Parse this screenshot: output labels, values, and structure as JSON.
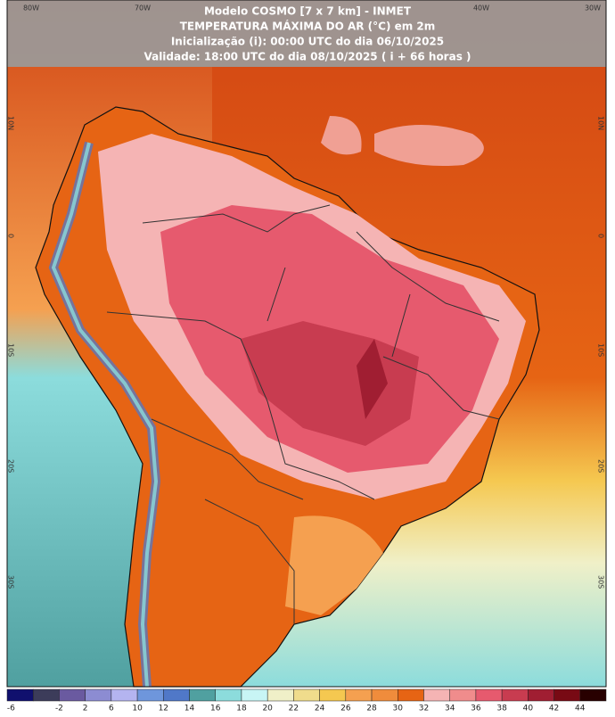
{
  "header": {
    "lines": [
      "Modelo COSMO [7 x 7 km] - INMET",
      "TEMPERATURA MÁXIMA DO AR (°C) em 2m",
      "Inicialização (i): 00:00 UTC do dia 06/10/2025",
      "Validade: 18:00 UTC do dia 08/10/2025 ( i + 66 horas )"
    ]
  },
  "grid": {
    "top": [
      "80W",
      "70W",
      "40W",
      "30W"
    ],
    "left": [
      "10N",
      "0",
      "10S",
      "20S",
      "30S"
    ],
    "right": [
      "10N",
      "0",
      "10S",
      "20S",
      "30S"
    ]
  },
  "legend": {
    "labels": [
      -6,
      -2,
      2,
      6,
      10,
      12,
      14,
      16,
      18,
      20,
      22,
      24,
      26,
      28,
      30,
      32,
      34,
      36,
      38,
      40,
      42,
      44
    ],
    "colors": [
      "#10106e",
      "#3c3c5a",
      "#6a5aa0",
      "#8c8cd2",
      "#b4b4f0",
      "#6e96dc",
      "#5078c8",
      "#50a0a0",
      "#8cdcdc",
      "#c8f5f5",
      "#f0f0c8",
      "#f0dc8c",
      "#f5c850",
      "#f5a050",
      "#f08c3c",
      "#e66414",
      "#f5b4b4",
      "#f08c8c",
      "#e65a6e",
      "#c83c50",
      "#a01e32",
      "#780a14",
      "#280000"
    ]
  }
}
